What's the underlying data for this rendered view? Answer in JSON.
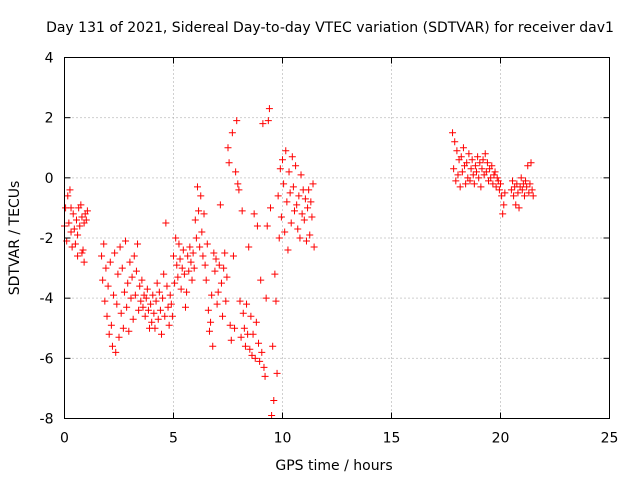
{
  "chart_data": {
    "type": "scatter",
    "title": "Day 131 of 2021, Sidereal Day-to-day VTEC variation (SDTVAR) for receiver dav1",
    "xlabel": "GPS time / hours",
    "ylabel": "SDTVAR / TECUs",
    "xlim": [
      0,
      25
    ],
    "ylim": [
      -8,
      4
    ],
    "xticks": [
      0,
      5,
      10,
      15,
      20,
      25
    ],
    "yticks": [
      -8,
      -6,
      -4,
      -2,
      0,
      2,
      4
    ],
    "xtick_labels": [
      "0",
      "5",
      "10",
      "15",
      "20",
      "25"
    ],
    "ytick_labels": [
      "-8",
      "-6",
      "-4",
      "-2",
      "0",
      "2",
      "4"
    ],
    "grid": true,
    "marker": "+",
    "color": "#ff0000",
    "series": [
      {
        "name": "dav1",
        "points": [
          [
            0.0,
            -1.6
          ],
          [
            0.05,
            -1.0
          ],
          [
            0.1,
            -2.1
          ],
          [
            0.15,
            -0.6
          ],
          [
            0.2,
            -1.5
          ],
          [
            0.25,
            -0.4
          ],
          [
            0.3,
            -1.8
          ],
          [
            0.35,
            -2.3
          ],
          [
            0.4,
            -1.2
          ],
          [
            0.45,
            -1.7
          ],
          [
            0.5,
            -2.2
          ],
          [
            0.55,
            -1.4
          ],
          [
            0.6,
            -1.9
          ],
          [
            0.65,
            -1.0
          ],
          [
            0.7,
            -1.6
          ],
          [
            0.75,
            -0.9
          ],
          [
            0.8,
            -1.3
          ],
          [
            0.85,
            -2.4
          ],
          [
            0.9,
            -1.5
          ],
          [
            0.95,
            -1.2
          ],
          [
            1.0,
            -1.4
          ],
          [
            1.05,
            -1.1
          ],
          [
            0.3,
            -1.0
          ],
          [
            0.6,
            -2.6
          ],
          [
            0.8,
            -2.5
          ],
          [
            0.9,
            -2.8
          ],
          [
            1.7,
            -2.6
          ],
          [
            1.75,
            -3.4
          ],
          [
            1.8,
            -2.2
          ],
          [
            1.85,
            -4.1
          ],
          [
            1.9,
            -3.0
          ],
          [
            1.95,
            -4.6
          ],
          [
            2.0,
            -3.6
          ],
          [
            2.05,
            -5.2
          ],
          [
            2.1,
            -2.8
          ],
          [
            2.15,
            -4.9
          ],
          [
            2.2,
            -5.6
          ],
          [
            2.25,
            -3.9
          ],
          [
            2.3,
            -2.5
          ],
          [
            2.35,
            -5.8
          ],
          [
            2.4,
            -4.2
          ],
          [
            2.45,
            -3.2
          ],
          [
            2.5,
            -5.3
          ],
          [
            2.55,
            -2.3
          ],
          [
            2.6,
            -4.5
          ],
          [
            2.65,
            -3.0
          ],
          [
            2.7,
            -5.0
          ],
          [
            2.75,
            -3.8
          ],
          [
            2.8,
            -2.1
          ],
          [
            2.85,
            -4.3
          ],
          [
            2.9,
            -3.5
          ],
          [
            2.95,
            -5.1
          ],
          [
            3.0,
            -2.8
          ],
          [
            3.05,
            -4.0
          ],
          [
            3.1,
            -3.3
          ],
          [
            3.15,
            -4.7
          ],
          [
            3.2,
            -2.6
          ],
          [
            3.25,
            -3.9
          ],
          [
            3.3,
            -3.1
          ],
          [
            3.35,
            -2.2
          ],
          [
            3.4,
            -4.4
          ],
          [
            3.45,
            -3.6
          ],
          [
            3.5,
            -4.1
          ],
          [
            3.55,
            -3.4
          ],
          [
            3.6,
            -4.3
          ],
          [
            3.65,
            -3.9
          ],
          [
            3.7,
            -4.6
          ],
          [
            3.75,
            -4.0
          ],
          [
            3.8,
            -3.7
          ],
          [
            3.85,
            -4.4
          ],
          [
            3.9,
            -5.0
          ],
          [
            3.95,
            -4.2
          ],
          [
            4.0,
            -4.8
          ],
          [
            4.05,
            -3.9
          ],
          [
            4.1,
            -4.5
          ],
          [
            4.15,
            -5.0
          ],
          [
            4.2,
            -4.1
          ],
          [
            4.25,
            -3.5
          ],
          [
            4.3,
            -4.7
          ],
          [
            4.35,
            -3.8
          ],
          [
            4.4,
            -4.4
          ],
          [
            4.45,
            -5.2
          ],
          [
            4.5,
            -4.0
          ],
          [
            4.55,
            -3.2
          ],
          [
            4.6,
            -4.6
          ],
          [
            4.65,
            -1.5
          ],
          [
            4.7,
            -3.6
          ],
          [
            4.75,
            -4.3
          ],
          [
            4.8,
            -4.9
          ],
          [
            4.85,
            -3.9
          ],
          [
            4.9,
            -4.2
          ],
          [
            4.95,
            -4.6
          ],
          [
            5.0,
            -2.6
          ],
          [
            5.05,
            -3.5
          ],
          [
            5.1,
            -2.0
          ],
          [
            5.15,
            -2.9
          ],
          [
            5.2,
            -3.3
          ],
          [
            5.25,
            -2.2
          ],
          [
            5.3,
            -2.7
          ],
          [
            5.35,
            -3.7
          ],
          [
            5.4,
            -3.0
          ],
          [
            5.45,
            -2.4
          ],
          [
            5.5,
            -3.2
          ],
          [
            5.55,
            -4.3
          ],
          [
            5.6,
            -3.8
          ],
          [
            5.65,
            -2.6
          ],
          [
            5.7,
            -3.1
          ],
          [
            5.75,
            -2.3
          ],
          [
            5.8,
            -2.8
          ],
          [
            5.85,
            -3.4
          ],
          [
            5.9,
            -2.5
          ],
          [
            5.95,
            -3.0
          ],
          [
            6.0,
            -1.4
          ],
          [
            6.05,
            -2.0
          ],
          [
            6.1,
            -0.3
          ],
          [
            6.15,
            -1.1
          ],
          [
            6.2,
            -2.3
          ],
          [
            6.25,
            -0.6
          ],
          [
            6.3,
            -1.8
          ],
          [
            6.35,
            -2.6
          ],
          [
            6.4,
            -1.2
          ],
          [
            6.45,
            -2.9
          ],
          [
            6.5,
            -3.4
          ],
          [
            6.55,
            -2.2
          ],
          [
            6.6,
            -4.4
          ],
          [
            6.65,
            -5.1
          ],
          [
            6.7,
            -4.8
          ],
          [
            6.75,
            -3.9
          ],
          [
            6.8,
            -5.6
          ],
          [
            6.85,
            -2.5
          ],
          [
            6.9,
            -3.1
          ],
          [
            6.95,
            -2.7
          ],
          [
            7.0,
            -4.2
          ],
          [
            7.05,
            -3.8
          ],
          [
            7.1,
            -2.9
          ],
          [
            7.15,
            -0.9
          ],
          [
            7.2,
            -3.5
          ],
          [
            7.25,
            -4.6
          ],
          [
            7.3,
            -3.0
          ],
          [
            7.35,
            -2.5
          ],
          [
            7.4,
            -4.1
          ],
          [
            7.45,
            -3.3
          ],
          [
            7.5,
            1.0
          ],
          [
            7.55,
            0.5
          ],
          [
            7.6,
            -4.9
          ],
          [
            7.65,
            -5.4
          ],
          [
            7.7,
            1.5
          ],
          [
            7.75,
            -2.6
          ],
          [
            7.8,
            -5.0
          ],
          [
            7.85,
            0.2
          ],
          [
            7.9,
            1.9
          ],
          [
            7.95,
            -0.2
          ],
          [
            8.0,
            -0.4
          ],
          [
            8.05,
            -4.1
          ],
          [
            8.1,
            -5.3
          ],
          [
            8.15,
            -1.1
          ],
          [
            8.2,
            -4.5
          ],
          [
            8.25,
            -5.0
          ],
          [
            8.3,
            -5.6
          ],
          [
            8.35,
            -4.2
          ],
          [
            8.4,
            -5.2
          ],
          [
            8.45,
            -2.3
          ],
          [
            8.5,
            -5.7
          ],
          [
            8.55,
            -4.6
          ],
          [
            8.6,
            -5.9
          ],
          [
            8.65,
            -5.2
          ],
          [
            8.7,
            -1.2
          ],
          [
            8.75,
            -6.0
          ],
          [
            8.8,
            -4.8
          ],
          [
            8.85,
            -1.6
          ],
          [
            8.9,
            -5.5
          ],
          [
            8.95,
            -6.1
          ],
          [
            9.0,
            -3.4
          ],
          [
            9.05,
            -5.8
          ],
          [
            9.1,
            1.8
          ],
          [
            9.15,
            -6.3
          ],
          [
            9.2,
            -6.6
          ],
          [
            9.25,
            -4.0
          ],
          [
            9.3,
            -1.6
          ],
          [
            9.35,
            1.9
          ],
          [
            9.4,
            2.3
          ],
          [
            9.45,
            -1.0
          ],
          [
            9.5,
            -7.9
          ],
          [
            9.55,
            -5.6
          ],
          [
            9.6,
            -7.4
          ],
          [
            9.65,
            -3.2
          ],
          [
            9.7,
            -4.1
          ],
          [
            9.75,
            -6.5
          ],
          [
            9.8,
            -0.6
          ],
          [
            9.85,
            -2.0
          ],
          [
            9.9,
            0.3
          ],
          [
            9.95,
            -1.3
          ],
          [
            10.0,
            0.6
          ],
          [
            10.05,
            -0.2
          ],
          [
            10.1,
            -1.8
          ],
          [
            10.15,
            0.9
          ],
          [
            10.2,
            -0.8
          ],
          [
            10.25,
            -2.4
          ],
          [
            10.3,
            0.2
          ],
          [
            10.35,
            -0.5
          ],
          [
            10.4,
            -1.5
          ],
          [
            10.45,
            0.7
          ],
          [
            10.5,
            -0.3
          ],
          [
            10.55,
            -1.1
          ],
          [
            10.6,
            0.4
          ],
          [
            10.65,
            -0.9
          ],
          [
            10.7,
            -1.7
          ],
          [
            10.75,
            -0.6
          ],
          [
            10.8,
            -2.0
          ],
          [
            10.85,
            0.1
          ],
          [
            10.9,
            -1.2
          ],
          [
            10.95,
            -0.4
          ],
          [
            11.0,
            -1.4
          ],
          [
            11.05,
            -0.7
          ],
          [
            11.1,
            -2.1
          ],
          [
            11.15,
            -1.0
          ],
          [
            11.2,
            -0.4
          ],
          [
            11.25,
            -1.9
          ],
          [
            11.3,
            -0.8
          ],
          [
            11.35,
            -1.3
          ],
          [
            11.4,
            -0.2
          ],
          [
            11.45,
            -2.3
          ],
          [
            17.8,
            1.5
          ],
          [
            17.85,
            0.3
          ],
          [
            17.9,
            1.2
          ],
          [
            17.95,
            -0.1
          ],
          [
            18.0,
            0.9
          ],
          [
            18.05,
            0.1
          ],
          [
            18.1,
            0.6
          ],
          [
            18.15,
            -0.3
          ],
          [
            18.2,
            0.7
          ],
          [
            18.25,
            0.2
          ],
          [
            18.3,
            1.0
          ],
          [
            18.35,
            0.4
          ],
          [
            18.4,
            -0.2
          ],
          [
            18.45,
            0.5
          ],
          [
            18.5,
            0.0
          ],
          [
            18.55,
            0.8
          ],
          [
            18.6,
            -0.1
          ],
          [
            18.65,
            0.3
          ],
          [
            18.7,
            0.6
          ],
          [
            18.75,
            0.1
          ],
          [
            18.8,
            -0.2
          ],
          [
            18.85,
            0.4
          ],
          [
            18.9,
            0.2
          ],
          [
            18.95,
            0.7
          ],
          [
            19.0,
            0.0
          ],
          [
            19.05,
            0.5
          ],
          [
            19.1,
            -0.3
          ],
          [
            19.15,
            0.3
          ],
          [
            19.2,
            0.6
          ],
          [
            19.25,
            0.1
          ],
          [
            19.3,
            0.8
          ],
          [
            19.35,
            0.2
          ],
          [
            19.4,
            0.5
          ],
          [
            19.45,
            -0.1
          ],
          [
            19.5,
            0.3
          ],
          [
            19.55,
            0.0
          ],
          [
            19.6,
            0.4
          ],
          [
            19.65,
            -0.2
          ],
          [
            19.7,
            0.1
          ],
          [
            19.75,
            0.2
          ],
          [
            19.8,
            -0.3
          ],
          [
            19.85,
            0.0
          ],
          [
            19.9,
            -0.1
          ],
          [
            19.95,
            -0.4
          ],
          [
            20.0,
            -0.2
          ],
          [
            20.05,
            -0.6
          ],
          [
            20.1,
            -1.2
          ],
          [
            20.15,
            -0.9
          ],
          [
            20.2,
            -0.5
          ],
          [
            20.5,
            -0.4
          ],
          [
            20.55,
            -0.1
          ],
          [
            20.6,
            -0.6
          ],
          [
            20.65,
            -0.3
          ],
          [
            20.7,
            -0.9
          ],
          [
            20.75,
            -0.2
          ],
          [
            20.8,
            -0.5
          ],
          [
            20.85,
            -1.0
          ],
          [
            20.9,
            -0.3
          ],
          [
            20.95,
            0.0
          ],
          [
            21.0,
            -0.4
          ],
          [
            21.05,
            -0.2
          ],
          [
            21.1,
            -0.6
          ],
          [
            21.15,
            -0.1
          ],
          [
            21.2,
            -0.3
          ],
          [
            21.25,
            0.4
          ],
          [
            21.3,
            -0.5
          ],
          [
            21.35,
            -0.2
          ],
          [
            21.4,
            0.5
          ],
          [
            21.45,
            -0.4
          ],
          [
            21.5,
            -0.6
          ]
        ]
      }
    ]
  }
}
